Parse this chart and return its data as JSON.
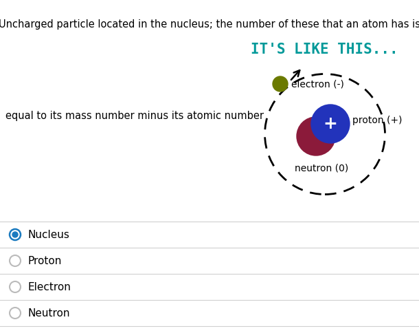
{
  "bg_color": "#ffffff",
  "title_text": "Uncharged particle located in the nucleus; the number of these that an atom has is",
  "subtitle_text": "IT'S LIKE THIS...",
  "subtitle_color": "#009999",
  "body_text": "equal to its mass number minus its atomic number",
  "electron_label": "electron (-)",
  "proton_label": "proton (+)",
  "neutron_label": "neutron (0)",
  "options": [
    "Nucleus",
    "Proton",
    "Electron",
    "Neutron"
  ],
  "selected_option": 0,
  "selected_color": "#1a7abf",
  "unselected_color": "#aaaaaa",
  "text_color": "#000000",
  "option_font_size": 11,
  "title_font_size": 10.5,
  "subtitle_font_size": 15,
  "body_font_size": 10.5,
  "fig_width": 6.1,
  "fig_height": 4.84,
  "dpi": 100
}
